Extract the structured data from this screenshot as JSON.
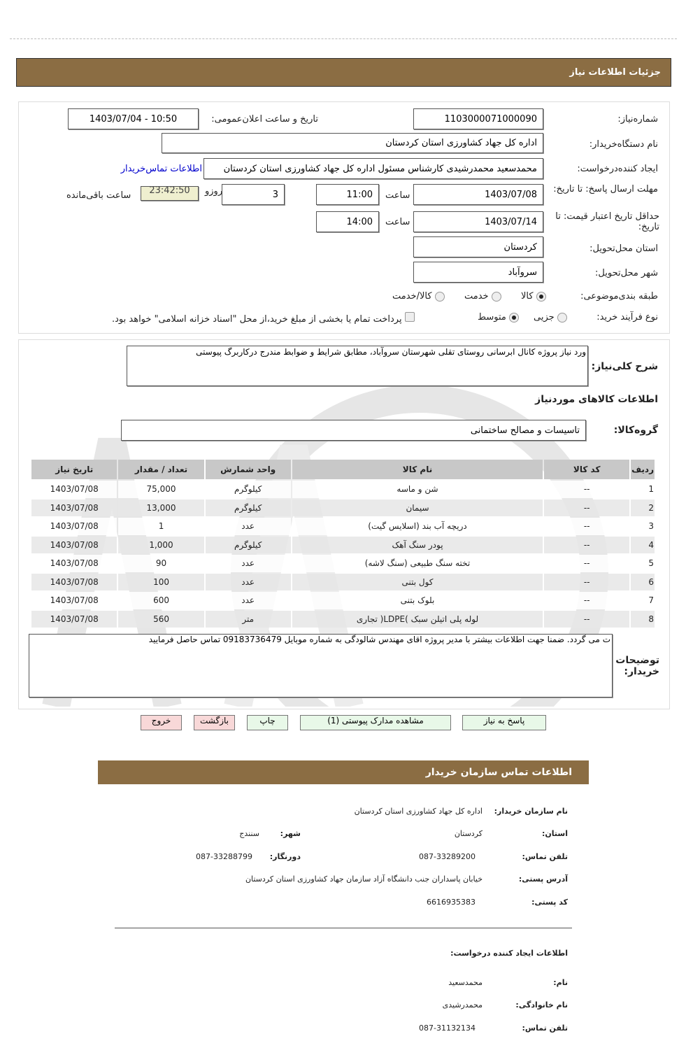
{
  "header": {
    "title": "جزئیات اطلاعات نیاز"
  },
  "form": {
    "need_number_label": "شماره‌نیاز:",
    "need_number": "1103000071000090",
    "announce_label": "تاریخ و ساعت اعلان‌عمومی:",
    "announce_value": "1403/07/04 - 10:50",
    "buyer_label": "نام دستگاه‌خریدار:",
    "buyer_value": "اداره کل جهاد کشاورزی استان کردستان",
    "creator_label": "ایجاد کننده‌درخواست:",
    "creator_value": "محمدسعید محمدرشیدی کارشناس مسئول اداره کل جهاد کشاورزی استان کردستان",
    "contact_link": "اطلاعات تماس‌خریدار",
    "deadline_label": "مهلت ارسال پاسخ: تا تاریخ:",
    "deadline_date": "1403/07/08",
    "hour_label": "ساعت",
    "deadline_time": "11:00",
    "days": "3",
    "days_label": "روزو",
    "timer": "23:42:50",
    "remaining_label": "ساعت باقی‌مانده",
    "validity_label": "حداقل تاریخ اعتبار قیمت: تا تاریخ:",
    "validity_date": "1403/07/14",
    "validity_time": "14:00",
    "province_label": "استان محل‌تحویل:",
    "province": "کردستان",
    "city_label": "شهر محل‌تحویل:",
    "city": "سروآباد",
    "category_label": "طبقه بندی‌موضوعی:",
    "category_options": [
      "کالا",
      "خدمت",
      "کالا/خدمت"
    ],
    "category_selected": "کالا",
    "process_label": "نوع فرآیند خرید:",
    "process_options": [
      "جزیی",
      "متوسط"
    ],
    "process_selected": "متوسط",
    "payment_note": "پرداخت تمام یا بخشی از مبلغ خرید،از محل \"اسناد خزانه اسلامی\" خواهد بود."
  },
  "details": {
    "description_label": "شرح کلی‌نیاز:",
    "description": "ورد نیاز پروژه کانال ابرسانی روستای تقلی شهرستان سروآباد، مطابق شرایط و ضوابط مندرج درکاربرگ پیوستی",
    "goods_title": "اطلاعات کالاهای موردنیاز",
    "group_label": "گروه‌کالا:",
    "group_value": "تاسیسات و مصالح ساختمانی",
    "columns": [
      "ردیف",
      "کد کالا",
      "نام کالا",
      "واحد شمارش",
      "تعداد / مقدار",
      "تاریخ نیاز"
    ],
    "rows": [
      [
        "1",
        "--",
        "شن و ماسه",
        "کیلوگرم",
        "75,000",
        "1403/07/08"
      ],
      [
        "2",
        "--",
        "سیمان",
        "کیلوگرم",
        "13,000",
        "1403/07/08"
      ],
      [
        "3",
        "--",
        "دریچه آب بند (اسلایس گیت)",
        "عدد",
        "1",
        "1403/07/08"
      ],
      [
        "4",
        "--",
        "پودر سنگ آهک",
        "کیلوگرم",
        "1,000",
        "1403/07/08"
      ],
      [
        "5",
        "--",
        "تخته سنگ طبیعی (سنگ لاشه)",
        "عدد",
        "90",
        "1403/07/08"
      ],
      [
        "6",
        "--",
        "کول بتنی",
        "عدد",
        "100",
        "1403/07/08"
      ],
      [
        "7",
        "--",
        "بلوک بتنی",
        "عدد",
        "600",
        "1403/07/08"
      ],
      [
        "8",
        "--",
        "لوله پلی اتیلن سبک )LDPE( تجاری",
        "متر",
        "560",
        "1403/07/08"
      ]
    ],
    "notes_label": "توضیحات خریدار:",
    "notes": "ت می گردد. ضمنا جهت اطلاعات بیشتر با مدیر پروژه اقای مهندس شالودگی به شماره موبایل 09183736479        تماس حاصل فرمایید"
  },
  "buttons": {
    "reply": "پاسخ به نیاز",
    "attachments": "مشاهده مدارک پیوستی (1)",
    "print": "چاپ",
    "back": "بازگشت",
    "exit": "خروج"
  },
  "contact": {
    "title": "اطلاعات تماس سازمان خریدار",
    "org_label": "نام سازمان  خریدار:",
    "org": "اداره کل جهاد کشاورزی استان کردستان",
    "province_label": "استان:",
    "province": "کردستان",
    "city_label": "شهر:",
    "city": "سنندج",
    "phone_label": "تلفن تماس:",
    "phone": "087-33289200",
    "fax_label": "دورنگار:",
    "fax": "087-33288799",
    "address_label": "آدرس پستی:",
    "address": "خیابان پاسداران جنب دانشگاه آزاد سازمان جهاد کشاورزی استان کردستان",
    "postal_label": "کد پستی:",
    "postal": "6616935383",
    "creator_title": "اطلاعات ایجاد کننده درخواست:",
    "name_label": "نام:",
    "name": "محمدسعید",
    "family_label": "نام  خانوادگی:",
    "family": "محمدرشیدی",
    "creator_phone_label": "تلفن تماس:",
    "creator_phone": "087-31132134"
  },
  "colors": {
    "brand": "#8b6d43",
    "timer_bg": "#efefcf",
    "link": "#0000cc"
  }
}
